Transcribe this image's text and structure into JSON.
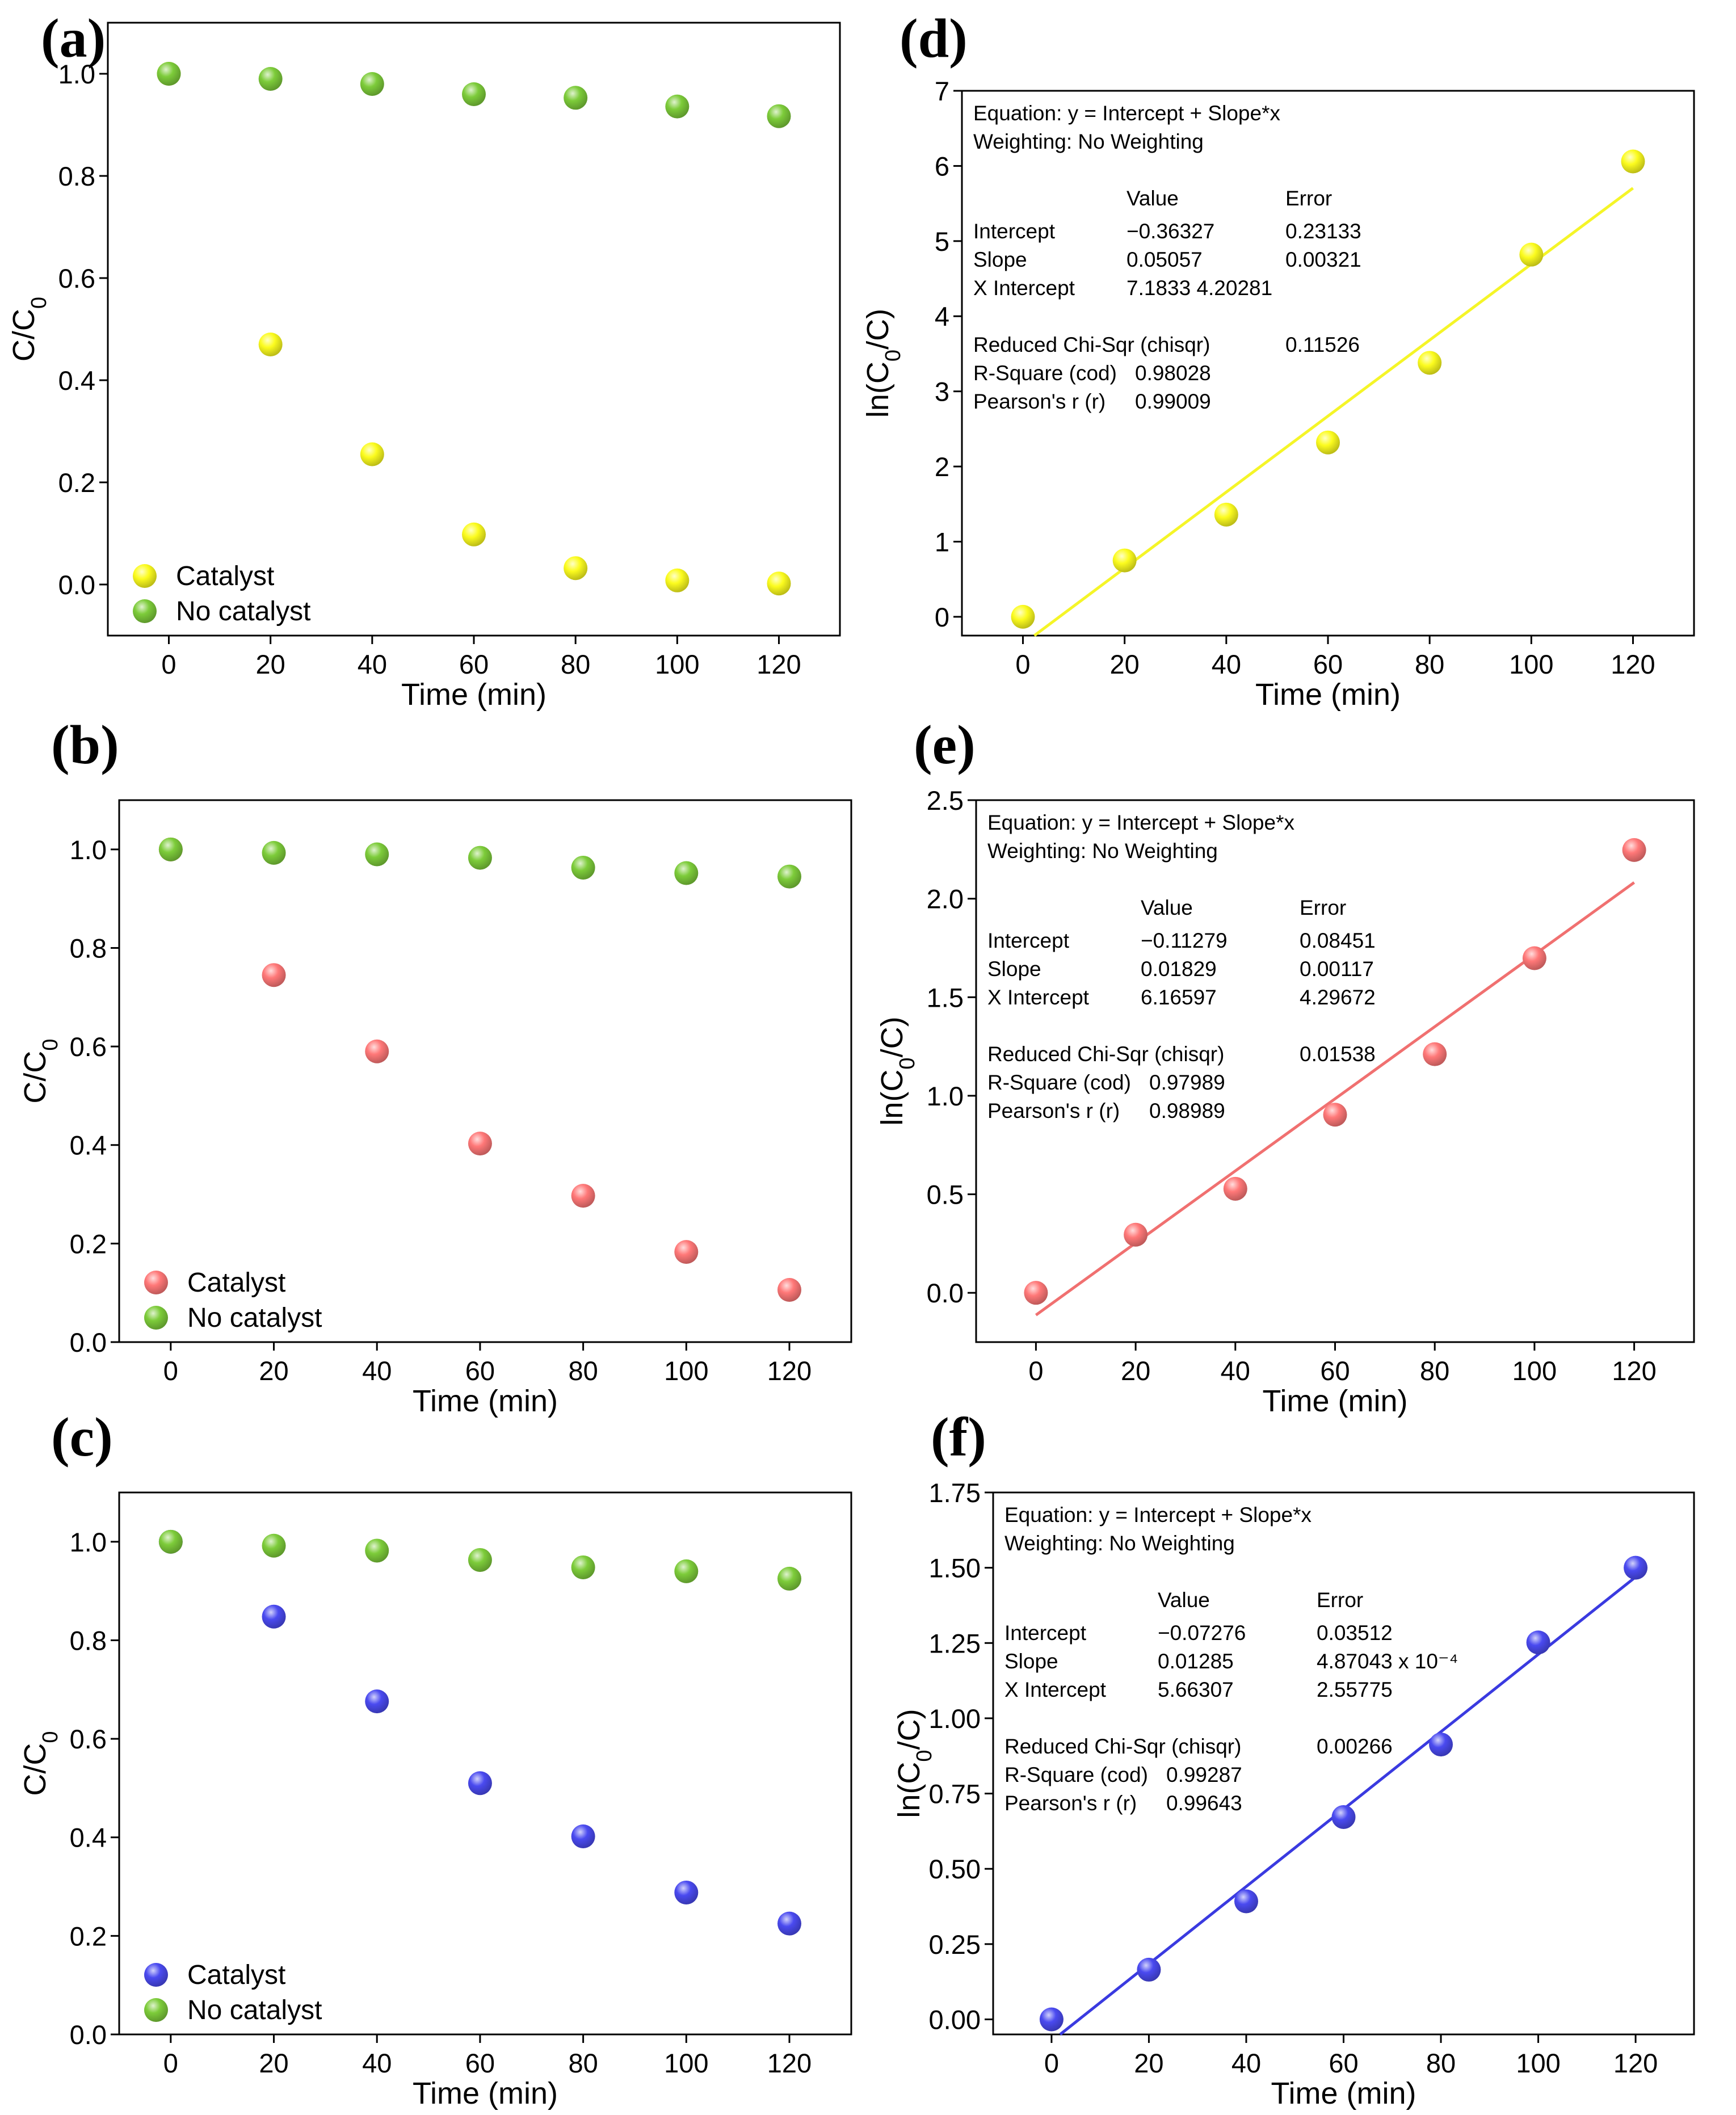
{
  "chart_data": [
    {
      "panel": "(a)",
      "type": "scatter",
      "xlabel": "Time (min)",
      "ylabel": "C/C0",
      "xlim": [
        -12,
        132
      ],
      "ylim": [
        -0.1,
        1.1
      ],
      "xticks": [
        0,
        20,
        40,
        60,
        80,
        100,
        120
      ],
      "yticks": [
        0.0,
        0.2,
        0.4,
        0.6,
        0.8,
        1.0
      ],
      "legend_position": "bottom-left",
      "series": [
        {
          "name": "Catalyst",
          "color": "#fcfc1e",
          "x": [
            0,
            20,
            40,
            60,
            80,
            100,
            120
          ],
          "values": [
            1.0,
            0.47,
            0.255,
            0.098,
            0.032,
            0.008,
            0.002
          ]
        },
        {
          "name": "No catalyst",
          "color": "#7dcc3a",
          "x": [
            0,
            20,
            40,
            60,
            80,
            100,
            120
          ],
          "values": [
            1.0,
            0.99,
            0.98,
            0.96,
            0.953,
            0.936,
            0.917
          ]
        }
      ]
    },
    {
      "panel": "(b)",
      "type": "scatter",
      "xlabel": "Time (min)",
      "ylabel": "C/C0",
      "xlim": [
        -10,
        132
      ],
      "ylim": [
        0.0,
        1.1
      ],
      "xticks": [
        0,
        20,
        40,
        60,
        80,
        100,
        120
      ],
      "yticks": [
        0.0,
        0.2,
        0.4,
        0.6,
        0.8,
        1.0
      ],
      "legend_position": "bottom-left",
      "series": [
        {
          "name": "Catalyst",
          "color": "#ff7878",
          "x": [
            0,
            20,
            40,
            60,
            80,
            100,
            120
          ],
          "values": [
            1.0,
            0.745,
            0.59,
            0.403,
            0.297,
            0.183,
            0.106
          ]
        },
        {
          "name": "No catalyst",
          "color": "#7dcc3a",
          "x": [
            0,
            20,
            40,
            60,
            80,
            100,
            120
          ],
          "values": [
            1.0,
            0.993,
            0.99,
            0.983,
            0.963,
            0.952,
            0.945
          ]
        }
      ]
    },
    {
      "panel": "(c)",
      "type": "scatter",
      "xlabel": "Time (min)",
      "ylabel": "C/C0",
      "xlim": [
        -10,
        132
      ],
      "ylim": [
        0.0,
        1.1
      ],
      "xticks": [
        0,
        20,
        40,
        60,
        80,
        100,
        120
      ],
      "yticks": [
        0.0,
        0.2,
        0.4,
        0.6,
        0.8,
        1.0
      ],
      "legend_position": "bottom-left",
      "series": [
        {
          "name": "Catalyst",
          "color": "#4a4af0",
          "x": [
            0,
            20,
            40,
            60,
            80,
            100,
            120
          ],
          "values": [
            1.0,
            0.848,
            0.676,
            0.51,
            0.402,
            0.288,
            0.225
          ]
        },
        {
          "name": "No catalyst",
          "color": "#7dcc3a",
          "x": [
            0,
            20,
            40,
            60,
            80,
            100,
            120
          ],
          "values": [
            1.0,
            0.992,
            0.982,
            0.963,
            0.948,
            0.94,
            0.925
          ]
        }
      ]
    },
    {
      "panel": "(d)",
      "type": "scatter",
      "xlabel": "Time (min)",
      "ylabel": "ln(C0/C)",
      "xlim": [
        -12,
        132
      ],
      "ylim": [
        -0.25,
        7
      ],
      "xticks": [
        0,
        20,
        40,
        60,
        80,
        100,
        120
      ],
      "yticks": [
        0,
        1,
        2,
        3,
        4,
        5,
        6,
        7
      ],
      "color": "#fcfc1e",
      "fit_color": "#f5f528",
      "fit": {
        "intercept": -0.36327,
        "slope": 0.05057,
        "x_range": [
          0,
          120
        ]
      },
      "x": [
        0,
        20,
        40,
        60,
        80,
        100,
        120
      ],
      "values": [
        0.0,
        0.75,
        1.36,
        2.32,
        3.38,
        4.82,
        6.06
      ],
      "stats": {
        "equation": "Equation: y = Intercept + Slope*x",
        "weighting": "Weighting: No Weighting",
        "col_value": "Value",
        "col_error": "Error",
        "rows": [
          {
            "name": "Intercept",
            "value": "−0.36327",
            "error": "0.23133"
          },
          {
            "name": "Slope",
            "value": "0.05057",
            "error": "0.00321"
          },
          {
            "name": "X Intercept",
            "value": "7.1833  4.20281",
            "error": ""
          }
        ],
        "chisqr_label": "Reduced Chi-Sqr (chisqr)",
        "chisqr_value": "0.11526",
        "rsq_label": "R-Square (cod)",
        "rsq_value": "0.98028",
        "pearson_label": "Pearson's r (r)",
        "pearson_value": "0.99009"
      }
    },
    {
      "panel": "(e)",
      "type": "scatter",
      "xlabel": "Time (min)",
      "ylabel": "ln(C0/C)",
      "xlim": [
        -12,
        132
      ],
      "ylim": [
        -0.25,
        2.5
      ],
      "xticks": [
        0,
        20,
        40,
        60,
        80,
        100,
        120
      ],
      "yticks": [
        0.0,
        0.5,
        1.0,
        1.5,
        2.0,
        2.5
      ],
      "color": "#ff7878",
      "fit_color": "#f07070",
      "fit": {
        "intercept": -0.11279,
        "slope": 0.01829,
        "x_range": [
          0,
          120
        ]
      },
      "x": [
        0,
        20,
        40,
        60,
        80,
        100,
        120
      ],
      "values": [
        0.0,
        0.295,
        0.528,
        0.904,
        1.211,
        1.698,
        2.247
      ],
      "stats": {
        "equation": "Equation: y = Intercept + Slope*x",
        "weighting": "Weighting: No Weighting",
        "col_value": "Value",
        "col_error": "Error",
        "rows": [
          {
            "name": "Intercept",
            "value": "−0.11279",
            "error": "0.08451"
          },
          {
            "name": "Slope",
            "value": "0.01829",
            "error": "0.00117"
          },
          {
            "name": "X Intercept",
            "value": "6.16597",
            "error": "4.29672"
          }
        ],
        "chisqr_label": "Reduced Chi-Sqr (chisqr)",
        "chisqr_value": "0.01538",
        "rsq_label": "R-Square (cod)",
        "rsq_value": "0.97989",
        "pearson_label": "Pearson's r (r)",
        "pearson_value": "0.98989"
      }
    },
    {
      "panel": "(f)",
      "type": "scatter",
      "xlabel": "Time (min)",
      "ylabel": "ln(C0/C)",
      "xlim": [
        -12,
        132
      ],
      "ylim": [
        -0.05,
        1.75
      ],
      "xticks": [
        0,
        20,
        40,
        60,
        80,
        100,
        120
      ],
      "yticks": [
        0.0,
        0.25,
        0.5,
        0.75,
        1.0,
        1.25,
        1.5,
        1.75
      ],
      "ytick_labels": [
        "0.00",
        "0.25",
        "0.50",
        "0.75",
        "1.00",
        "1.25",
        "1.50",
        "1.75"
      ],
      "color": "#4a4af0",
      "fit_color": "#3a3ae0",
      "fit": {
        "intercept": -0.07276,
        "slope": 0.01285,
        "x_range": [
          0,
          120
        ]
      },
      "x": [
        0,
        20,
        40,
        60,
        80,
        100,
        120
      ],
      "values": [
        0.0,
        0.165,
        0.392,
        0.672,
        0.913,
        1.252,
        1.5
      ],
      "stats": {
        "equation": "Equation: y = Intercept + Slope*x",
        "weighting": "Weighting: No Weighting",
        "col_value": "Value",
        "col_error": "Error",
        "rows": [
          {
            "name": "Intercept",
            "value": "−0.07276",
            "error": "0.03512"
          },
          {
            "name": "Slope",
            "value": "0.01285",
            "error": "4.87043 x 10⁻⁴"
          },
          {
            "name": "X Intercept",
            "value": "5.66307",
            "error": "2.55775"
          }
        ],
        "chisqr_label": "Reduced Chi-Sqr (chisqr)",
        "chisqr_value": "0.00266",
        "rsq_label": "R-Square (cod)",
        "rsq_value": "0.99287",
        "pearson_label": "Pearson's r (r)",
        "pearson_value": "0.99643"
      }
    }
  ]
}
